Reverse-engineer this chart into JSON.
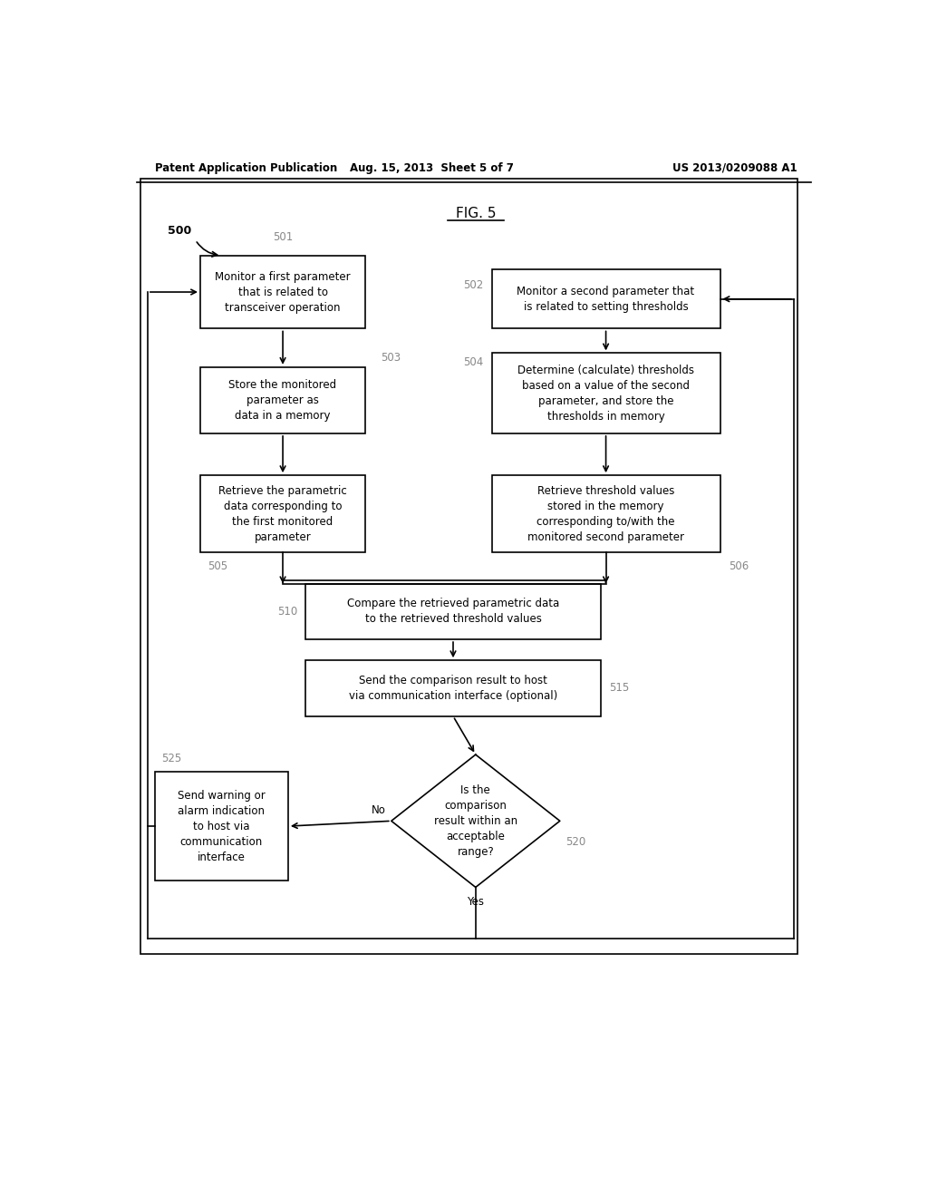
{
  "bg_color": "#ffffff",
  "header_left": "Patent Application Publication",
  "header_mid": "Aug. 15, 2013  Sheet 5 of 7",
  "header_right": "US 2013/0209088 A1",
  "fig_title": "FIG. 5",
  "label_500": "500",
  "label_501": "501",
  "label_502": "502",
  "label_503": "503",
  "label_504": "504",
  "label_505": "505",
  "label_506": "506",
  "label_510": "510",
  "label_515": "515",
  "label_520": "520",
  "label_525": "525",
  "box501_text": "Monitor a first parameter\nthat is related to\ntransceiver operation",
  "box502_text": "Monitor a second parameter that\nis related to setting thresholds",
  "box503_text": "Store the monitored\nparameter as\ndata in a memory",
  "box504_text": "Determine (calculate) thresholds\nbased on a value of the second\nparameter, and store the\nthresholds in memory",
  "box505_text": "Retrieve the parametric\ndata corresponding to\nthe first monitored\nparameter",
  "box506_text": "Retrieve threshold values\nstored in the memory\ncorresponding to/with the\nmonitored second parameter",
  "box510_text": "Compare the retrieved parametric data\nto the retrieved threshold values",
  "box515_text": "Send the comparison result to host\nvia communication interface (optional)",
  "diamond520_text": "Is the\ncomparison\nresult within an\nacceptable\nrange?",
  "box525_text": "Send warning or\nalarm indication\nto host via\ncommunication\ninterface",
  "label_no": "No",
  "label_yes": "Yes"
}
